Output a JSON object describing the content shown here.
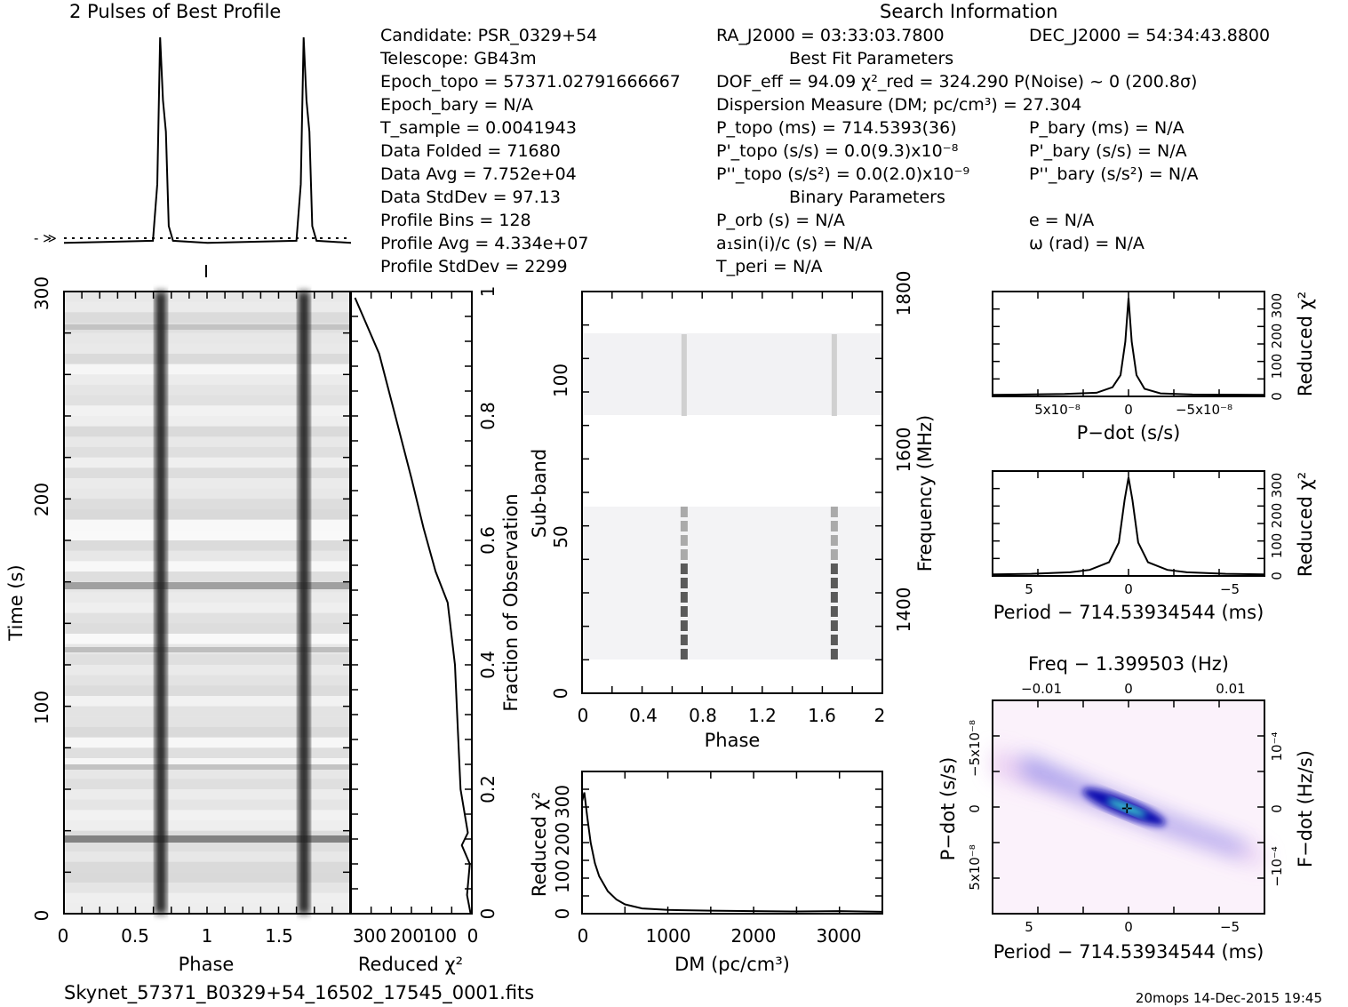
{
  "header": {
    "profile_title": "2 Pulses of Best Profile",
    "search_title": "Search Information"
  },
  "info": {
    "col1": [
      "Candidate:  PSR_0329+54",
      "Telescope:  GB43m",
      "Epoch_topo = 57371.02791666667",
      "Epoch_bary = N/A",
      "T_sample      =  0.0041943",
      "Data Folded     =  71680",
      "Data Avg        =  7.752e+04",
      "Data StdDev     =  97.13",
      "Profile Bins    =  128",
      "Profile Avg     =  4.334e+07",
      "Profile StdDev  =  2299"
    ],
    "col2": [
      "RA_J2000 = 03:33:03.7800",
      "Best Fit Parameters",
      "DOF_eff = 94.09  χ²_red = 324.290  P(Noise) ~ 0   (200.8σ)",
      "Dispersion Measure (DM; pc/cm³) = 27.304",
      "P_topo (ms) =  714.5393(36)",
      "P'_topo (s/s) = 0.0(9.3)x10⁻⁸",
      "P''_topo (s/s²) = 0.0(2.0)x10⁻⁹",
      "Binary Parameters",
      "P_orb (s) = N/A",
      "a₁sin(i)/c (s) = N/A",
      "T_peri = N/A"
    ],
    "col3": [
      "DEC_J2000 = 54:34:43.8800",
      "P_bary (ms) = N/A",
      "P'_bary (s/s) = N/A",
      "P''_bary (s/s²) = N/A",
      "e = N/A",
      "ω (rad) = N/A"
    ]
  },
  "footer": {
    "filename": "Skynet_57371_B0329+54_16502_17545_0001.fits",
    "stamp": "20mops 14-Dec-2015 19:45"
  },
  "chart_data": [
    {
      "type": "line",
      "id": "profile",
      "title": "2 Pulses of Best Profile",
      "x_range": [
        0,
        2
      ],
      "series": [
        {
          "x": [
            0,
            0.62,
            0.65,
            0.67,
            0.69,
            0.71,
            0.73,
            0.76,
            1.0,
            1.62,
            1.65,
            1.67,
            1.69,
            1.71,
            1.73,
            1.76,
            2.0
          ],
          "y": [
            0.02,
            0.03,
            0.3,
            1.0,
            0.7,
            0.55,
            0.1,
            0.03,
            0.02,
            0.03,
            0.3,
            1.0,
            0.7,
            0.55,
            0.1,
            0.03,
            0.02
          ]
        }
      ]
    },
    {
      "type": "heatmap",
      "id": "time-phase",
      "xlabel": "Phase",
      "ylabel": "Time (s)",
      "xlim": [
        0,
        2
      ],
      "ylim": [
        0,
        300
      ],
      "x_ticks": [
        "0",
        "0.5",
        "1",
        "1.5"
      ],
      "y_ticks": [
        "0",
        "100",
        "200",
        "300"
      ],
      "pulse_phases": [
        0.67,
        1.67
      ]
    },
    {
      "type": "line",
      "id": "time-chi2",
      "xlabel": "Reduced χ²",
      "ylabel": "Fraction of Observation",
      "xlim": [
        300,
        0
      ],
      "ylim": [
        0,
        1
      ],
      "x_ticks": [
        "300",
        "200",
        "100",
        "0"
      ],
      "y_ticks": [
        "0",
        "0.2",
        "0.4",
        "0.6",
        "0.8",
        "1"
      ],
      "series": [
        {
          "x": [
            3,
            12,
            5,
            25,
            10,
            28,
            35,
            42,
            60,
            90,
            120,
            150,
            190,
            230,
            270,
            290
          ],
          "y": [
            0,
            0.03,
            0.08,
            0.11,
            0.13,
            0.2,
            0.3,
            0.4,
            0.5,
            0.55,
            0.62,
            0.7,
            0.8,
            0.9,
            0.96,
            0.99
          ]
        }
      ]
    },
    {
      "type": "heatmap",
      "id": "subband-phase",
      "xlabel": "Phase",
      "ylabel": "Sub-band",
      "y2label": "Frequency (MHz)",
      "xlim": [
        0,
        2
      ],
      "ylim": [
        0,
        128
      ],
      "x_ticks": [
        "0",
        "0.4",
        "0.8",
        "1.2",
        "1.6",
        "2"
      ],
      "y_ticks": [
        "0",
        "50",
        "100"
      ],
      "y2_ticks": [
        "1400",
        "1600",
        "1800"
      ],
      "pulse_phases": [
        0.68,
        1.68
      ]
    },
    {
      "type": "line",
      "id": "dm-chi2",
      "xlabel": "DM (pc/cm³)",
      "ylabel": "Reduced χ²",
      "xlim": [
        0,
        3500
      ],
      "ylim": [
        0,
        350
      ],
      "x_ticks": [
        "0",
        "1000",
        "2000",
        "3000"
      ],
      "y_ticks": [
        "0",
        "100",
        "200",
        "300"
      ],
      "series": [
        {
          "x": [
            0,
            27,
            60,
            100,
            150,
            200,
            300,
            400,
            500,
            700,
            1000,
            1500,
            2000,
            2500,
            3000,
            3500
          ],
          "y": [
            300,
            324,
            260,
            190,
            135,
            100,
            60,
            38,
            25,
            14,
            10,
            8,
            7,
            6,
            7,
            5
          ]
        }
      ]
    },
    {
      "type": "line",
      "id": "pdot-chi2",
      "xlabel": "P−dot (s/s)",
      "ylabel": "Reduced χ²",
      "xlim": [
        8.5e-08,
        -8.5e-08
      ],
      "ylim": [
        0,
        350
      ],
      "x_ticks": [
        "5x10⁻⁸",
        "0",
        "−5x10⁻⁸"
      ],
      "y_ticks": [
        "0",
        "100",
        "200",
        "300"
      ],
      "series": [
        {
          "x": [
            8.5e-08,
            4e-08,
            2e-08,
            1e-08,
            5e-09,
            2e-09,
            0,
            -2e-09,
            -5e-09,
            -1e-08,
            -2e-08,
            -4e-08,
            -8.5e-08
          ],
          "y": [
            5,
            8,
            12,
            30,
            70,
            180,
            324,
            180,
            70,
            25,
            10,
            6,
            5
          ]
        }
      ]
    },
    {
      "type": "line",
      "id": "period-chi2",
      "xlabel": "Period − 714.53934544 (ms)",
      "ylabel": "Reduced χ²",
      "xlim": [
        7,
        -7
      ],
      "ylim": [
        0,
        350
      ],
      "x_ticks": [
        "5",
        "0",
        "−5"
      ],
      "y_ticks": [
        "0",
        "100",
        "200",
        "300"
      ],
      "series": [
        {
          "x": [
            7,
            5,
            3,
            2,
            1,
            0.5,
            0.2,
            0,
            -0.2,
            -0.5,
            -1,
            -2,
            -3,
            -5,
            -7
          ],
          "y": [
            5,
            7,
            12,
            20,
            45,
            110,
            250,
            324,
            250,
            110,
            45,
            20,
            12,
            7,
            5
          ]
        }
      ]
    },
    {
      "type": "heatmap",
      "id": "period-pdot",
      "xlabel": "Period − 714.53934544 (ms)",
      "ylabel": "P−dot (s/s)",
      "x2label": "Freq − 1.399503 (Hz)",
      "y2label": "F−dot (Hz/s)",
      "xlim": [
        7,
        -7
      ],
      "x_ticks": [
        "5",
        "0",
        "−5"
      ],
      "x2_ticks": [
        "−0.01",
        "0",
        "0.01"
      ],
      "y_ticks": [
        "−5x10⁻⁸",
        "0",
        "5x10⁻⁸"
      ],
      "y2_ticks": [
        "10⁻⁴",
        "0",
        "−10⁻⁴"
      ]
    }
  ]
}
